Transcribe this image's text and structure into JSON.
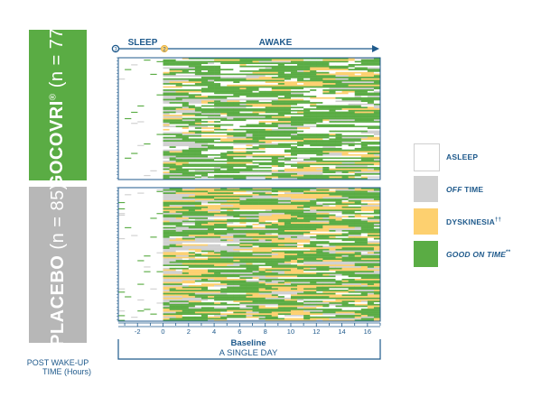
{
  "groups": [
    {
      "name": "GOCOVRI",
      "mark": "®",
      "n_label": "(n = 77)",
      "rows": 77,
      "color": "#5aac44"
    },
    {
      "name": "PLACEBO",
      "mark": "",
      "n_label": "(n = 85)",
      "rows": 85,
      "color": "#b7b7b7"
    }
  ],
  "phase": {
    "sleep": "SLEEP",
    "awake": "AWAKE",
    "sleep_marker": "3",
    "awake_marker": "2"
  },
  "legend": [
    {
      "key": "asleep",
      "label": "ASLEEP",
      "italic": "",
      "sup": "",
      "color": "#ffffff"
    },
    {
      "key": "off",
      "label": " TIME",
      "italic": "OFF",
      "sup": "",
      "color": "#d0d0d0"
    },
    {
      "key": "dysk",
      "label": "DYSKINESIA",
      "italic": "",
      "sup": "††",
      "color": "#fdd06f"
    },
    {
      "key": "good",
      "label": " TIME",
      "italic": "GOOD ON",
      "sup": "**",
      "color": "#5aac44"
    }
  ],
  "axis": {
    "x_ticks": [
      "-2",
      "0",
      "2",
      "4",
      "6",
      "8",
      "10",
      "12",
      "14",
      "16"
    ],
    "x_tick_values": [
      -2,
      0,
      2,
      4,
      6,
      8,
      10,
      12,
      14,
      16
    ],
    "xlim": [
      -3.5,
      17
    ],
    "baseline_label": "Baseline",
    "day_label": "A SINGLE DAY",
    "x_title_line1": "POST WAKE-UP",
    "x_title_line2": "TIME (Hours)"
  },
  "chart_data": {
    "type": "heatmap",
    "x_unit": "hours post wake-up",
    "bin_hours": 0.5,
    "states": [
      "asleep",
      "off",
      "dysk",
      "good"
    ],
    "panels": [
      {
        "group": "GOCOVRI",
        "n": 77,
        "sleep_range": [
          -3.5,
          0
        ],
        "awake_range": [
          0,
          17
        ],
        "approx_mix_awake": {
          "good": 0.55,
          "dysk": 0.12,
          "off": 0.1,
          "asleep": 0.23
        }
      },
      {
        "group": "PLACEBO",
        "n": 85,
        "sleep_range": [
          -3.5,
          0
        ],
        "awake_range": [
          0,
          17
        ],
        "approx_mix_awake": {
          "good": 0.48,
          "dysk": 0.28,
          "off": 0.16,
          "asleep": 0.08
        }
      }
    ]
  }
}
